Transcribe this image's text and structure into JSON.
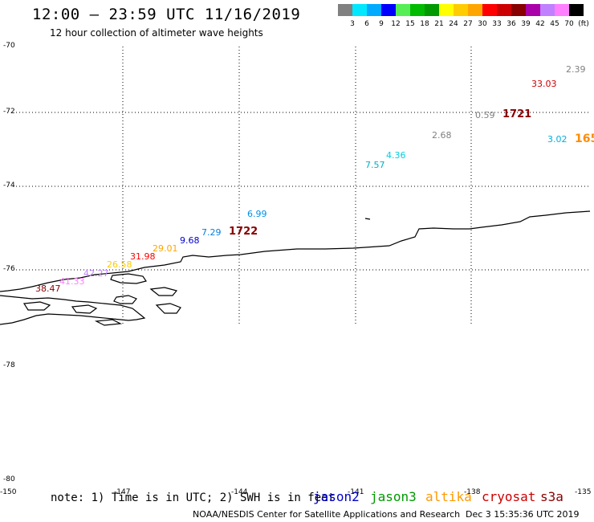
{
  "header": {
    "title": "12:00 – 23:59 UTC 11/16/2019",
    "subtitle": "12 hour collection of altimeter wave heights"
  },
  "legend": {
    "unit": "(ft)",
    "colors": [
      "#808080",
      "#00e8ff",
      "#00aaff",
      "#0000ff",
      "#55ee55",
      "#00bb00",
      "#009900",
      "#ffff00",
      "#ffcc00",
      "#ffa500",
      "#ff0000",
      "#cc0000",
      "#880000",
      "#aa00aa",
      "#c080ff",
      "#ff80ff",
      "#000000"
    ],
    "ticks": [
      "3",
      "6",
      "9",
      "12",
      "15",
      "18",
      "21",
      "24",
      "27",
      "30",
      "33",
      "36",
      "39",
      "42",
      "45",
      "70"
    ]
  },
  "axes": {
    "lat_labels": [
      "-70",
      "-72",
      "-74",
      "-76",
      "-78",
      "-80"
    ],
    "lon_labels": [
      "-150",
      "-147",
      "-144",
      "-141",
      "-138",
      "-135"
    ]
  },
  "observations": [
    {
      "text": "2.39",
      "color": "#808080"
    },
    {
      "text": "33.03",
      "color": "#cc0000"
    },
    {
      "text": "0.59",
      "color": "#808080"
    },
    {
      "text": "3.02",
      "color": "#00b0e0"
    },
    {
      "text": "2.68",
      "color": "#808080"
    },
    {
      "text": "4.36",
      "color": "#00d0e0"
    },
    {
      "text": "7.57",
      "color": "#00b0c8"
    },
    {
      "text": "6.99",
      "color": "#0090e8"
    },
    {
      "text": "7.29",
      "color": "#0080e0"
    },
    {
      "text": "9.68",
      "color": "#0000cc"
    },
    {
      "text": "29.01",
      "color": "#ffa500"
    },
    {
      "text": "31.98",
      "color": "#ff0000"
    },
    {
      "text": "26.58",
      "color": "#ffcc00"
    },
    {
      "text": "42.27",
      "color": "#c080ff"
    },
    {
      "text": "41.33",
      "color": "#ff80ff"
    },
    {
      "text": "38.47",
      "color": "#880000"
    }
  ],
  "pass_labels": [
    {
      "text": "1721",
      "color": "#880000"
    },
    {
      "text": "165",
      "color": "#ff8c00"
    },
    {
      "text": "1722",
      "color": "#880000"
    }
  ],
  "footer": {
    "note": "note: 1) Time is in UTC; 2) SWH is in feet",
    "satellites": [
      {
        "name": "jason2",
        "color": "#0000cc"
      },
      {
        "name": "jason3",
        "color": "#009900"
      },
      {
        "name": "altika",
        "color": "#ff9900"
      },
      {
        "name": "cryosat",
        "color": "#cc0000"
      },
      {
        "name": "s3a",
        "color": "#880000"
      }
    ],
    "credit": "NOAA/NESDIS Center for Satellite Applications and Research",
    "timestamp": "Dec  3 15:35:36 UTC 2019"
  }
}
